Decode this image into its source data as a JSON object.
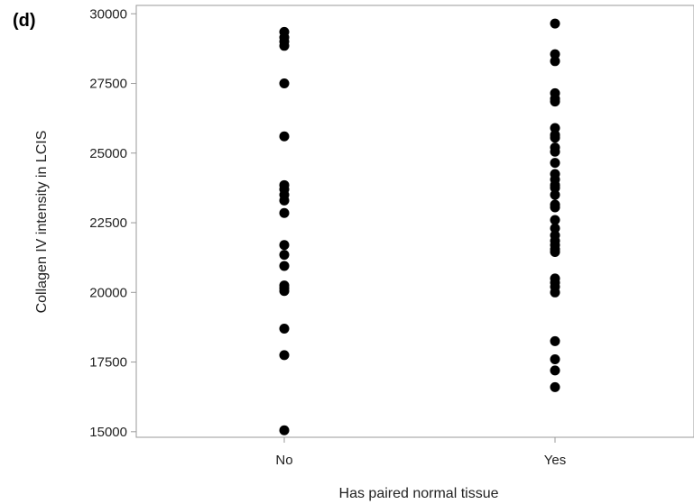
{
  "chart_data": {
    "type": "scatter",
    "panel_label": "(d)",
    "title": "",
    "xlabel": "Has paired normal tissue",
    "ylabel": "Collagen IV intensity in LCIS",
    "categories": [
      "No",
      "Yes"
    ],
    "yticks": [
      15000,
      17500,
      20000,
      22500,
      25000,
      27500,
      30000
    ],
    "ytick_labels": [
      "15000",
      "17500",
      "20000",
      "22500",
      "25000",
      "27500",
      "30000"
    ],
    "ylim": [
      14800,
      30300
    ],
    "grid": false,
    "series": [
      {
        "category": "No",
        "values": [
          29350,
          29150,
          29000,
          28850,
          27500,
          25600,
          23850,
          23700,
          23500,
          23300,
          22850,
          21700,
          21350,
          20950,
          20250,
          20150,
          20050,
          18700,
          17750,
          15050
        ]
      },
      {
        "category": "Yes",
        "values": [
          29650,
          28550,
          28300,
          27150,
          26950,
          26850,
          25900,
          25650,
          25550,
          25200,
          25050,
          24650,
          24250,
          24050,
          23850,
          23750,
          23500,
          23150,
          23050,
          22600,
          22300,
          22050,
          21850,
          21700,
          21550,
          21450,
          20500,
          20350,
          20200,
          20000,
          18250,
          17600,
          17200,
          16600
        ]
      }
    ]
  }
}
